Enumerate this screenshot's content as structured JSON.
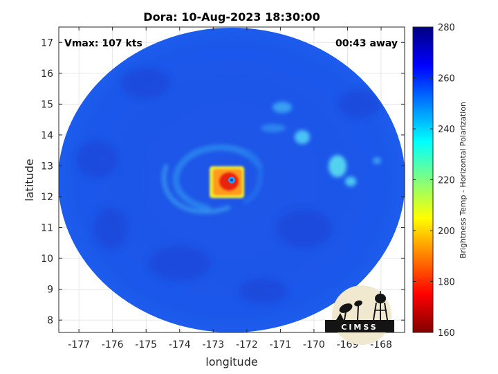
{
  "chart_data": {
    "type": "heatmap",
    "title": "Dora: 10-Aug-2023 18:30:00",
    "xlabel": "longitude",
    "ylabel": "latitude",
    "xlim": [
      -177.6,
      -167.3
    ],
    "ylim": [
      7.6,
      17.5
    ],
    "xticks": [
      -177,
      -176,
      -175,
      -174,
      -173,
      -172,
      -171,
      -170,
      -169,
      -168
    ],
    "yticks": [
      8,
      9,
      10,
      11,
      12,
      13,
      14,
      15,
      16,
      17
    ],
    "grid": true,
    "annotations": {
      "left": "Vmax: 107 kts",
      "right": "00:43 away"
    },
    "colorbar": {
      "label": "Brightness Temp - Horizontal Polarization",
      "range": [
        160,
        280
      ],
      "ticks": [
        160,
        180,
        200,
        220,
        240,
        260,
        280
      ],
      "colormap": "jet"
    },
    "features": {
      "background_value": 262,
      "storm_center": {
        "lon": -172.5,
        "lat": 12.5
      },
      "eye_value": 248,
      "eyewall_min": 190
    },
    "logo": {
      "text": "CIMSS"
    }
  }
}
